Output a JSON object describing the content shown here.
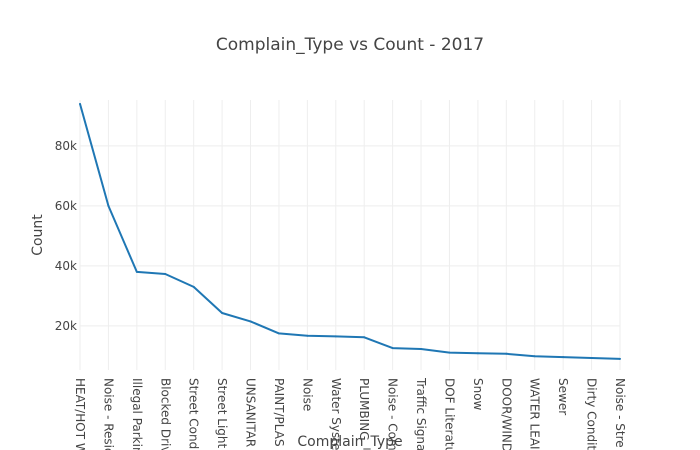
{
  "chart_data": {
    "type": "line",
    "title": "Complain_Type vs Count - 2017",
    "xlabel": "Complain_Type",
    "ylabel": "Count",
    "categories": [
      "HEAT/HOT W",
      "Noise - Resid",
      "Illegal Parkin",
      "Blocked Driv",
      "Street Cond",
      "Street Light",
      "UNSANITAR",
      "PAINT/PLAS",
      "Noise",
      "Water Syste",
      "PLUMBING",
      "Noise - Com",
      "Traffic Signa",
      "DOF Literatu",
      "Snow",
      "DOOR/WIND",
      "WATER LEAI",
      "Sewer",
      "Dirty Condit",
      "Noise - Stre"
    ],
    "series": [
      {
        "color": "#1f77b4",
        "values": [
          94000,
          60000,
          38000,
          37300,
          33000,
          24300,
          21500,
          17500,
          16700,
          16500,
          16200,
          12600,
          12300,
          11100,
          10900,
          10700,
          9900,
          9600,
          9300,
          9000
        ]
      }
    ],
    "yticks": [
      20000,
      40000,
      60000,
      80000
    ],
    "ytick_labels": [
      "20k",
      "40k",
      "60k",
      "80k"
    ],
    "ylim": [
      5300,
      95300
    ],
    "grid": true,
    "legend": "none"
  }
}
